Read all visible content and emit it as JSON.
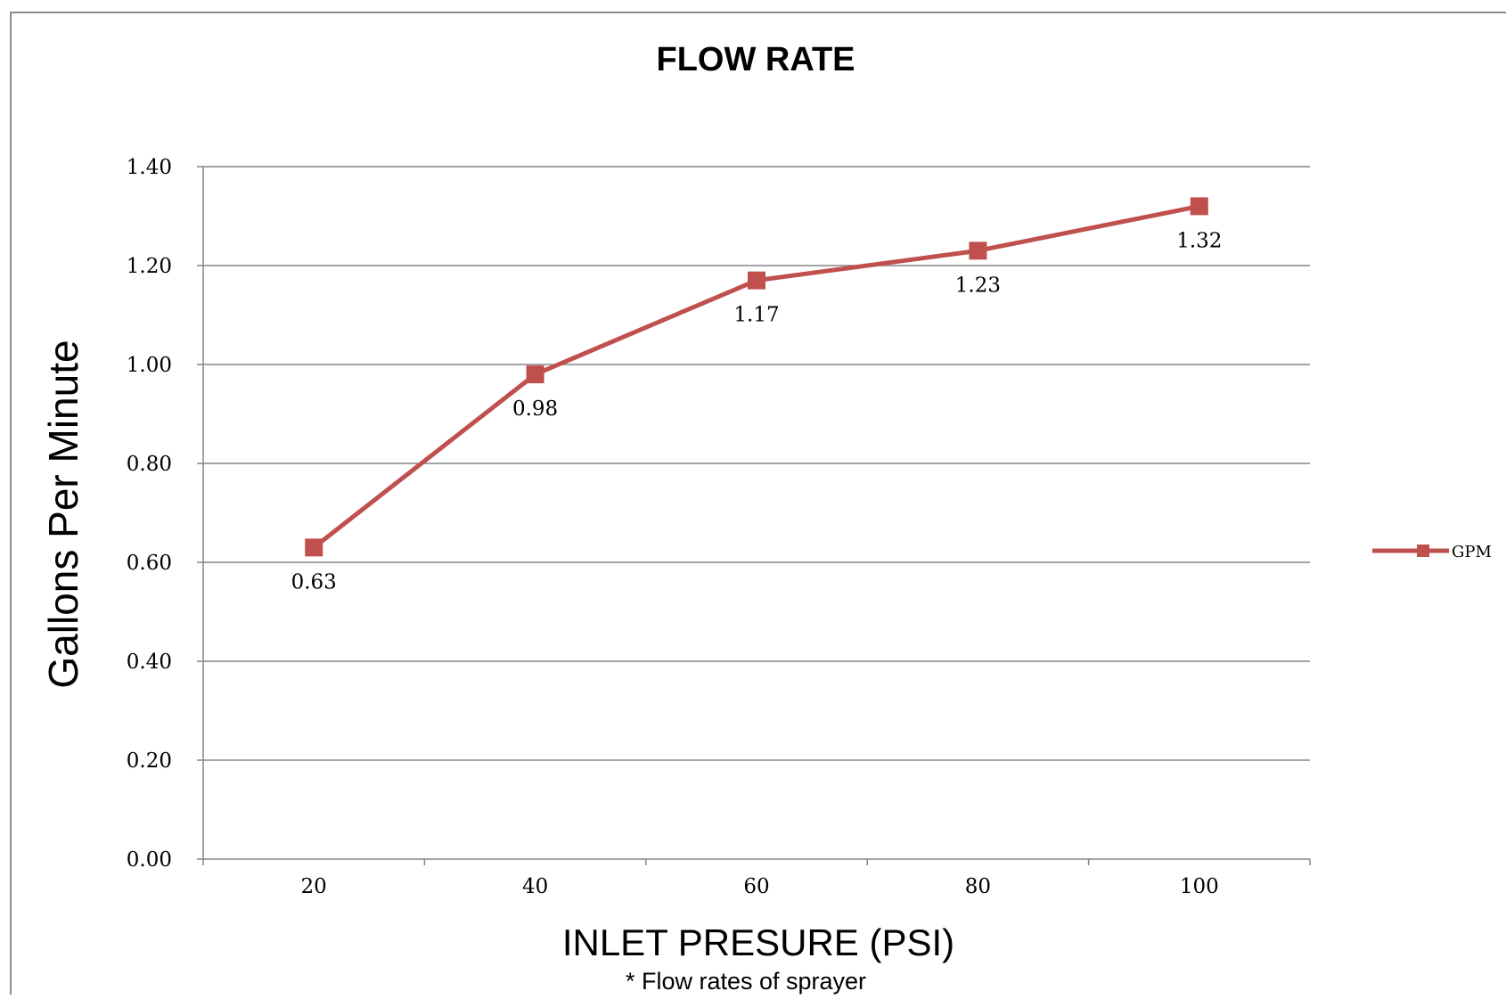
{
  "chart_data": {
    "type": "line",
    "title": "FLOW RATE",
    "xlabel": "INLET PRESURE (PSI)",
    "ylabel": "Gallons Per Minute",
    "footnote": "* Flow rates of sprayer",
    "categories": [
      "20",
      "40",
      "60",
      "80",
      "100"
    ],
    "series": [
      {
        "name": "GPM",
        "values": [
          0.63,
          0.98,
          1.17,
          1.23,
          1.32
        ],
        "data_labels": [
          "0.63",
          "0.98",
          "1.17",
          "1.23",
          "1.32"
        ],
        "color": "#c0504d"
      }
    ],
    "ylim": [
      0,
      1.4
    ],
    "y_ticks": [
      0,
      0.2,
      0.4,
      0.6,
      0.8,
      1.0,
      1.2,
      1.4
    ],
    "y_tick_labels": [
      "0.00",
      "0.20",
      "0.40",
      "0.60",
      "0.80",
      "1.00",
      "1.20",
      "1.40"
    ],
    "grid": "horizontal",
    "legend": "right",
    "marker": "square"
  },
  "colors": {
    "series": "#c0504d",
    "grid": "#868686",
    "frame": "#8c8c8c",
    "text": "#000000"
  }
}
